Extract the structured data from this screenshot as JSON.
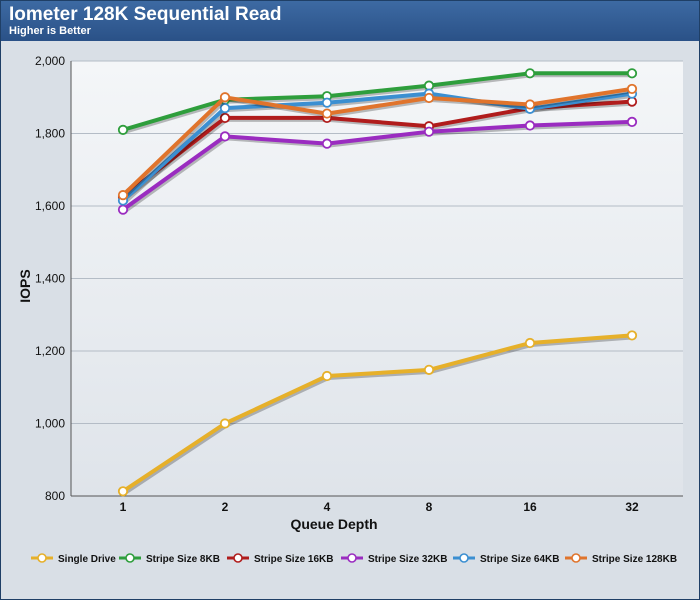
{
  "chart_data": {
    "type": "line",
    "title": "Iometer 128K Sequential Read",
    "subtitle": "Higher is Better",
    "xlabel": "Queue Depth",
    "ylabel": "IOPS",
    "categories": [
      "1",
      "2",
      "4",
      "8",
      "16",
      "32"
    ],
    "ylim": [
      800,
      2000
    ],
    "yticks": [
      "800",
      "1,000",
      "1,200",
      "1,400",
      "1,600",
      "1,800",
      "2,000"
    ],
    "grid": true,
    "legend_position": "bottom",
    "series": [
      {
        "name": "Single Drive",
        "color": "#e6b02a",
        "values": [
          813,
          1000,
          1131,
          1148,
          1222,
          1243
        ]
      },
      {
        "name": "Stripe Size 8KB",
        "color": "#2e9e3c",
        "values": [
          1810,
          1893,
          1903,
          1932,
          1966,
          1966
        ]
      },
      {
        "name": "Stripe Size 16KB",
        "color": "#b01c1c",
        "values": [
          1625,
          1843,
          1843,
          1820,
          1870,
          1888
        ]
      },
      {
        "name": "Stripe Size 32KB",
        "color": "#9a2cc0",
        "values": [
          1590,
          1792,
          1772,
          1805,
          1822,
          1832
        ]
      },
      {
        "name": "Stripe Size 64KB",
        "color": "#3b8fd1",
        "values": [
          1615,
          1870,
          1885,
          1910,
          1868,
          1910
        ]
      },
      {
        "name": "Stripe Size 128KB",
        "color": "#e0742c",
        "values": [
          1630,
          1900,
          1855,
          1898,
          1880,
          1923
        ]
      }
    ]
  }
}
